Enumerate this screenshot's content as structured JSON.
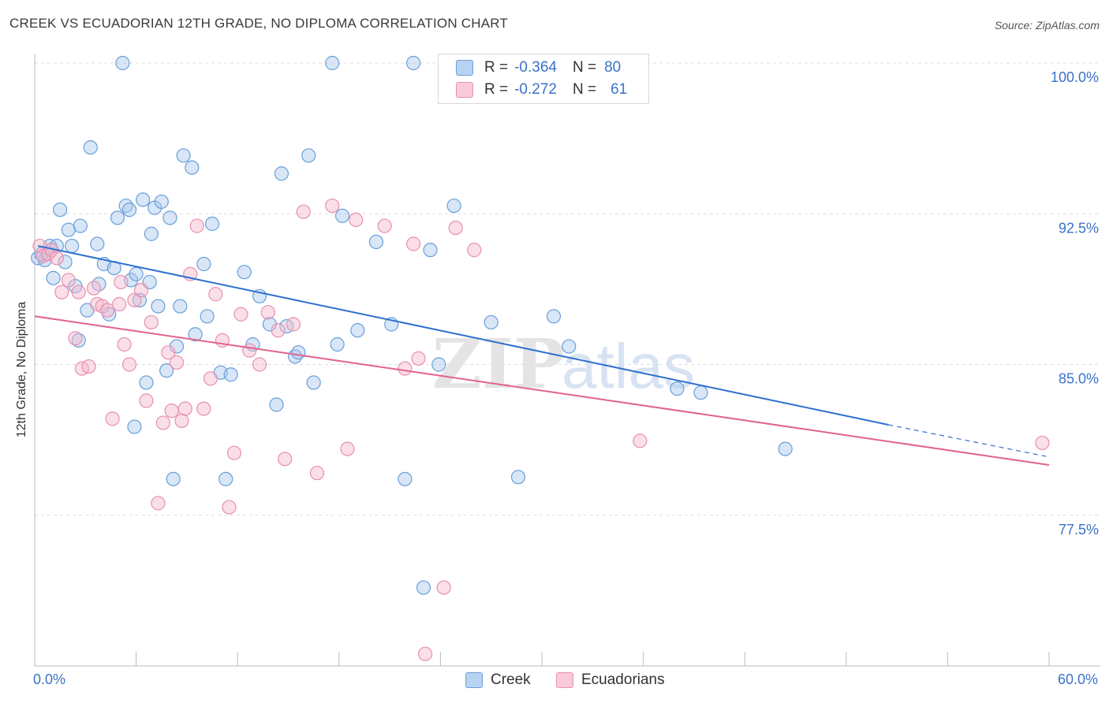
{
  "chart_data": {
    "type": "scatter",
    "title": "CREEK VS ECUADORIAN 12TH GRADE, NO DIPLOMA CORRELATION CHART",
    "source": "Source: ZipAtlas.com",
    "ylabel": "12th Grade, No Diploma",
    "xlabel": "",
    "xlim": [
      0,
      60
    ],
    "ylim": [
      70,
      100
    ],
    "x_tick_labels": [
      "0.0%",
      "60.0%"
    ],
    "y_ticks": [
      77.5,
      85.0,
      92.5,
      100.0
    ],
    "y_tick_labels": [
      "77.5%",
      "85.0%",
      "92.5%",
      "100.0%"
    ],
    "grid": true,
    "watermark": "ZIPatlas",
    "legend": {
      "placement": "top-center",
      "rows": [
        {
          "r_label": "R =",
          "r_value": "-0.364",
          "n_label": "N =",
          "n_value": "80"
        },
        {
          "r_label": "R =",
          "r_value": "-0.272",
          "n_label": "N =",
          "n_value": "61"
        }
      ]
    },
    "series": [
      {
        "name": "Creek",
        "color": "#a9c8ee",
        "stroke": "#6a9fd8",
        "line_color": "#2e6fd0",
        "trend": {
          "x0": 0.2,
          "y0": 90.9,
          "x1": 50.5,
          "y1": 82.0,
          "dash_to_x": 60.0,
          "dash_to_y": 80.4
        },
        "points": [
          [
            0.2,
            90.3
          ],
          [
            0.6,
            90.2
          ],
          [
            0.9,
            90.9
          ],
          [
            1.1,
            89.3
          ],
          [
            1.3,
            90.9
          ],
          [
            1.5,
            92.7
          ],
          [
            1.8,
            90.1
          ],
          [
            2.0,
            91.7
          ],
          [
            2.2,
            90.9
          ],
          [
            2.4,
            88.9
          ],
          [
            2.6,
            86.2
          ],
          [
            2.7,
            91.9
          ],
          [
            3.1,
            87.7
          ],
          [
            3.3,
            95.8
          ],
          [
            3.7,
            91.0
          ],
          [
            4.1,
            90.0
          ],
          [
            4.4,
            87.5
          ],
          [
            4.7,
            89.8
          ],
          [
            4.9,
            92.3
          ],
          [
            5.2,
            100.0
          ],
          [
            5.4,
            92.9
          ],
          [
            5.6,
            92.7
          ],
          [
            5.7,
            89.2
          ],
          [
            5.9,
            81.9
          ],
          [
            6.0,
            89.5
          ],
          [
            6.2,
            88.2
          ],
          [
            6.4,
            93.2
          ],
          [
            6.6,
            84.1
          ],
          [
            6.9,
            91.5
          ],
          [
            7.1,
            92.8
          ],
          [
            7.3,
            87.9
          ],
          [
            7.5,
            93.1
          ],
          [
            7.8,
            84.7
          ],
          [
            8.0,
            92.3
          ],
          [
            8.2,
            79.3
          ],
          [
            8.4,
            85.9
          ],
          [
            8.6,
            87.9
          ],
          [
            8.8,
            95.4
          ],
          [
            9.3,
            94.8
          ],
          [
            9.5,
            86.5
          ],
          [
            10.0,
            90.0
          ],
          [
            10.2,
            87.4
          ],
          [
            10.5,
            92.0
          ],
          [
            11.0,
            84.6
          ],
          [
            11.3,
            79.3
          ],
          [
            11.6,
            84.5
          ],
          [
            12.4,
            89.6
          ],
          [
            12.9,
            86.0
          ],
          [
            13.3,
            88.4
          ],
          [
            13.9,
            87.0
          ],
          [
            14.3,
            83.0
          ],
          [
            14.6,
            94.5
          ],
          [
            14.9,
            86.9
          ],
          [
            15.4,
            85.4
          ],
          [
            15.6,
            85.6
          ],
          [
            16.2,
            95.4
          ],
          [
            16.5,
            84.1
          ],
          [
            17.6,
            100.0
          ],
          [
            17.9,
            86.0
          ],
          [
            18.2,
            92.4
          ],
          [
            19.1,
            86.7
          ],
          [
            20.2,
            91.1
          ],
          [
            21.1,
            87.0
          ],
          [
            21.9,
            79.3
          ],
          [
            22.4,
            100.0
          ],
          [
            23.0,
            73.9
          ],
          [
            23.4,
            90.7
          ],
          [
            23.9,
            85.0
          ],
          [
            24.8,
            92.9
          ],
          [
            27.0,
            87.1
          ],
          [
            28.6,
            79.4
          ],
          [
            30.7,
            87.4
          ],
          [
            31.6,
            85.9
          ],
          [
            38.0,
            83.8
          ],
          [
            39.4,
            83.6
          ],
          [
            44.4,
            80.8
          ],
          [
            0.4,
            90.5
          ],
          [
            1.0,
            90.7
          ],
          [
            3.8,
            89.0
          ],
          [
            6.8,
            89.1
          ]
        ]
      },
      {
        "name": "Ecuadorians",
        "color": "#f5b8cc",
        "stroke": "#e890ad",
        "line_color": "#e0628e",
        "trend": {
          "x0": 0.0,
          "y0": 87.4,
          "x1": 60.0,
          "y1": 80.0
        },
        "points": [
          [
            0.3,
            90.9
          ],
          [
            0.5,
            90.4
          ],
          [
            0.8,
            90.5
          ],
          [
            1.0,
            90.7
          ],
          [
            1.3,
            90.3
          ],
          [
            1.6,
            88.6
          ],
          [
            2.0,
            89.2
          ],
          [
            2.4,
            86.3
          ],
          [
            2.6,
            88.6
          ],
          [
            2.8,
            84.8
          ],
          [
            3.2,
            84.9
          ],
          [
            3.5,
            88.8
          ],
          [
            3.7,
            88.0
          ],
          [
            4.0,
            87.9
          ],
          [
            4.3,
            87.7
          ],
          [
            4.6,
            82.3
          ],
          [
            5.0,
            88.0
          ],
          [
            5.3,
            86.0
          ],
          [
            5.6,
            85.0
          ],
          [
            5.9,
            88.2
          ],
          [
            6.3,
            88.7
          ],
          [
            6.6,
            83.2
          ],
          [
            6.9,
            87.1
          ],
          [
            7.3,
            78.1
          ],
          [
            7.6,
            82.1
          ],
          [
            7.9,
            85.6
          ],
          [
            8.1,
            82.7
          ],
          [
            8.4,
            85.1
          ],
          [
            8.7,
            82.2
          ],
          [
            8.9,
            82.8
          ],
          [
            9.2,
            89.5
          ],
          [
            9.6,
            91.9
          ],
          [
            10.0,
            82.8
          ],
          [
            10.4,
            84.3
          ],
          [
            10.7,
            88.5
          ],
          [
            11.1,
            86.2
          ],
          [
            11.5,
            77.9
          ],
          [
            11.8,
            80.6
          ],
          [
            12.2,
            87.5
          ],
          [
            12.7,
            85.7
          ],
          [
            13.3,
            85.0
          ],
          [
            13.8,
            87.6
          ],
          [
            14.4,
            86.7
          ],
          [
            14.8,
            80.3
          ],
          [
            15.3,
            87.0
          ],
          [
            15.9,
            92.6
          ],
          [
            16.7,
            79.6
          ],
          [
            17.6,
            92.9
          ],
          [
            18.5,
            80.8
          ],
          [
            19.0,
            92.2
          ],
          [
            20.7,
            91.9
          ],
          [
            21.9,
            84.8
          ],
          [
            22.4,
            91.0
          ],
          [
            22.7,
            85.3
          ],
          [
            23.1,
            70.6
          ],
          [
            24.2,
            73.9
          ],
          [
            24.9,
            91.8
          ],
          [
            26.0,
            90.7
          ],
          [
            35.8,
            81.2
          ],
          [
            59.6,
            81.1
          ],
          [
            5.1,
            89.1
          ]
        ]
      }
    ]
  }
}
